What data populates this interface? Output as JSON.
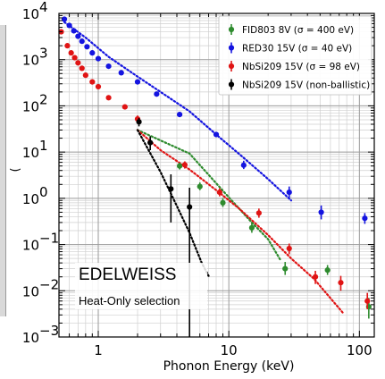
{
  "chart_data": {
    "type": "scatter",
    "xlabel": "Phonon Energy (keV)",
    "xscale": "log",
    "yscale": "log",
    "xlim": [
      0.5,
      130
    ],
    "ylim": [
      0.001,
      10000
    ],
    "x_ticks": [
      {
        "value": 1,
        "label": "1"
      },
      {
        "value": 10,
        "label": "10"
      },
      {
        "value": 100,
        "label": "100"
      }
    ],
    "y_ticks": [
      {
        "value": 0.001,
        "base": "10",
        "exp": "−3"
      },
      {
        "value": 0.01,
        "base": "10",
        "exp": "−2"
      },
      {
        "value": 0.1,
        "base": "10",
        "exp": "−1"
      },
      {
        "value": 1,
        "base": "10",
        "exp": "0"
      },
      {
        "value": 10,
        "base": "10",
        "exp": "1"
      },
      {
        "value": 100,
        "base": "10",
        "exp": "2"
      },
      {
        "value": 1000,
        "base": "10",
        "exp": "3"
      },
      {
        "value": 10000,
        "base": "10",
        "exp": "4"
      }
    ],
    "grid": true,
    "legend_position": "top-right",
    "annotations": [
      "EDELWEISS",
      "Heat-Only selection"
    ],
    "series": [
      {
        "name": "FID803 8V (σ = 400 eV)",
        "color": "#2e8b2e",
        "points": [
          {
            "x": 4.2,
            "y": 5.0,
            "lo": 4.2,
            "hi": 5.9
          },
          {
            "x": 6.0,
            "y": 1.8,
            "lo": 1.5,
            "hi": 2.2
          },
          {
            "x": 9.0,
            "y": 0.8,
            "lo": 0.65,
            "hi": 1.0
          },
          {
            "x": 15.0,
            "y": 0.23,
            "lo": 0.18,
            "hi": 0.3
          },
          {
            "x": 27.0,
            "y": 0.03,
            "lo": 0.022,
            "hi": 0.042
          },
          {
            "x": 57.0,
            "y": 0.028,
            "lo": 0.022,
            "hi": 0.036
          },
          {
            "x": 118.0,
            "y": 0.0045,
            "lo": 0.0025,
            "hi": 0.007
          }
        ],
        "fit": [
          [
            2.0,
            30.0
          ],
          [
            5.0,
            9.3
          ],
          [
            10.0,
            1.05
          ],
          [
            15.0,
            0.3
          ],
          [
            20.0,
            0.13
          ],
          [
            25.0,
            0.045
          ]
        ]
      },
      {
        "name": "RED30 15V (σ = 40 eV)",
        "color": "#1414e0",
        "points": [
          {
            "x": 0.55,
            "y": 7500
          },
          {
            "x": 0.6,
            "y": 5500
          },
          {
            "x": 0.65,
            "y": 4200
          },
          {
            "x": 0.7,
            "y": 3200
          },
          {
            "x": 0.75,
            "y": 2500
          },
          {
            "x": 0.82,
            "y": 1900
          },
          {
            "x": 0.9,
            "y": 1400
          },
          {
            "x": 1.0,
            "y": 1050
          },
          {
            "x": 1.2,
            "y": 720
          },
          {
            "x": 1.5,
            "y": 520
          },
          {
            "x": 2.0,
            "y": 330
          },
          {
            "x": 2.8,
            "y": 180
          },
          {
            "x": 4.2,
            "y": 65
          },
          {
            "x": 8.0,
            "y": 24
          },
          {
            "x": 13.0,
            "y": 5.2,
            "lo": 4.3,
            "hi": 6.5
          },
          {
            "x": 29.0,
            "y": 1.35,
            "lo": 1.0,
            "hi": 1.8
          },
          {
            "x": 51.0,
            "y": 0.5,
            "lo": 0.35,
            "hi": 0.7
          },
          {
            "x": 110.0,
            "y": 0.37,
            "lo": 0.28,
            "hi": 0.48
          }
        ],
        "fit": [
          [
            0.55,
            6500
          ],
          [
            0.8,
            3000
          ],
          [
            1.2,
            1150
          ],
          [
            2.0,
            430
          ],
          [
            3.0,
            200
          ],
          [
            5.0,
            76
          ],
          [
            8.0,
            24
          ],
          [
            13.0,
            7.5
          ],
          [
            20.0,
            2.6
          ],
          [
            30.0,
            0.9
          ]
        ]
      },
      {
        "name": "NbSi209 15V (σ = 98 eV)",
        "color": "#e01414",
        "points": [
          {
            "x": 0.52,
            "y": 4000
          },
          {
            "x": 0.58,
            "y": 2000
          },
          {
            "x": 0.62,
            "y": 1400
          },
          {
            "x": 0.66,
            "y": 1100
          },
          {
            "x": 0.7,
            "y": 850
          },
          {
            "x": 0.75,
            "y": 650
          },
          {
            "x": 0.8,
            "y": 460
          },
          {
            "x": 0.9,
            "y": 330
          },
          {
            "x": 1.0,
            "y": 260
          },
          {
            "x": 1.2,
            "y": 150
          },
          {
            "x": 1.6,
            "y": 95
          },
          {
            "x": 2.0,
            "y": 52,
            "lo": 42,
            "hi": 62
          },
          {
            "x": 4.6,
            "y": 5.3,
            "lo": 4.4,
            "hi": 6.3
          },
          {
            "x": 8.5,
            "y": 1.35,
            "lo": 1.1,
            "hi": 1.65
          },
          {
            "x": 17.0,
            "y": 0.48,
            "lo": 0.38,
            "hi": 0.6
          },
          {
            "x": 29.0,
            "y": 0.082,
            "lo": 0.062,
            "hi": 0.105
          },
          {
            "x": 46.0,
            "y": 0.02,
            "lo": 0.014,
            "hi": 0.027
          },
          {
            "x": 72.0,
            "y": 0.015,
            "lo": 0.01,
            "hi": 0.021
          },
          {
            "x": 115.0,
            "y": 0.006,
            "lo": 0.004,
            "hi": 0.009
          }
        ],
        "fit": [
          [
            2.0,
            30.0
          ],
          [
            3.0,
            11.0
          ],
          [
            5.0,
            4.2
          ],
          [
            8.0,
            1.5
          ],
          [
            12.0,
            0.6
          ],
          [
            20.0,
            0.16
          ],
          [
            30.0,
            0.05
          ],
          [
            45.0,
            0.018
          ],
          [
            75.0,
            0.0033
          ]
        ]
      },
      {
        "name": "NbSi209 15V (non-ballistic)",
        "color": "#000000",
        "points": [
          {
            "x": 2.05,
            "y": 45,
            "lo": 36,
            "hi": 55
          },
          {
            "x": 2.5,
            "y": 16,
            "lo": 11,
            "hi": 22
          },
          {
            "x": 3.6,
            "y": 1.6,
            "lo": 0.3,
            "hi": 3.3
          },
          {
            "x": 5.0,
            "y": 0.65,
            "lo": 0.001,
            "hi": 1.7
          }
        ],
        "fit": [
          [
            2.0,
            30.0
          ],
          [
            3.0,
            3.7
          ],
          [
            4.0,
            0.68
          ],
          [
            5.0,
            0.18
          ],
          [
            6.2,
            0.04
          ],
          [
            7.0,
            0.021
          ]
        ]
      }
    ]
  }
}
